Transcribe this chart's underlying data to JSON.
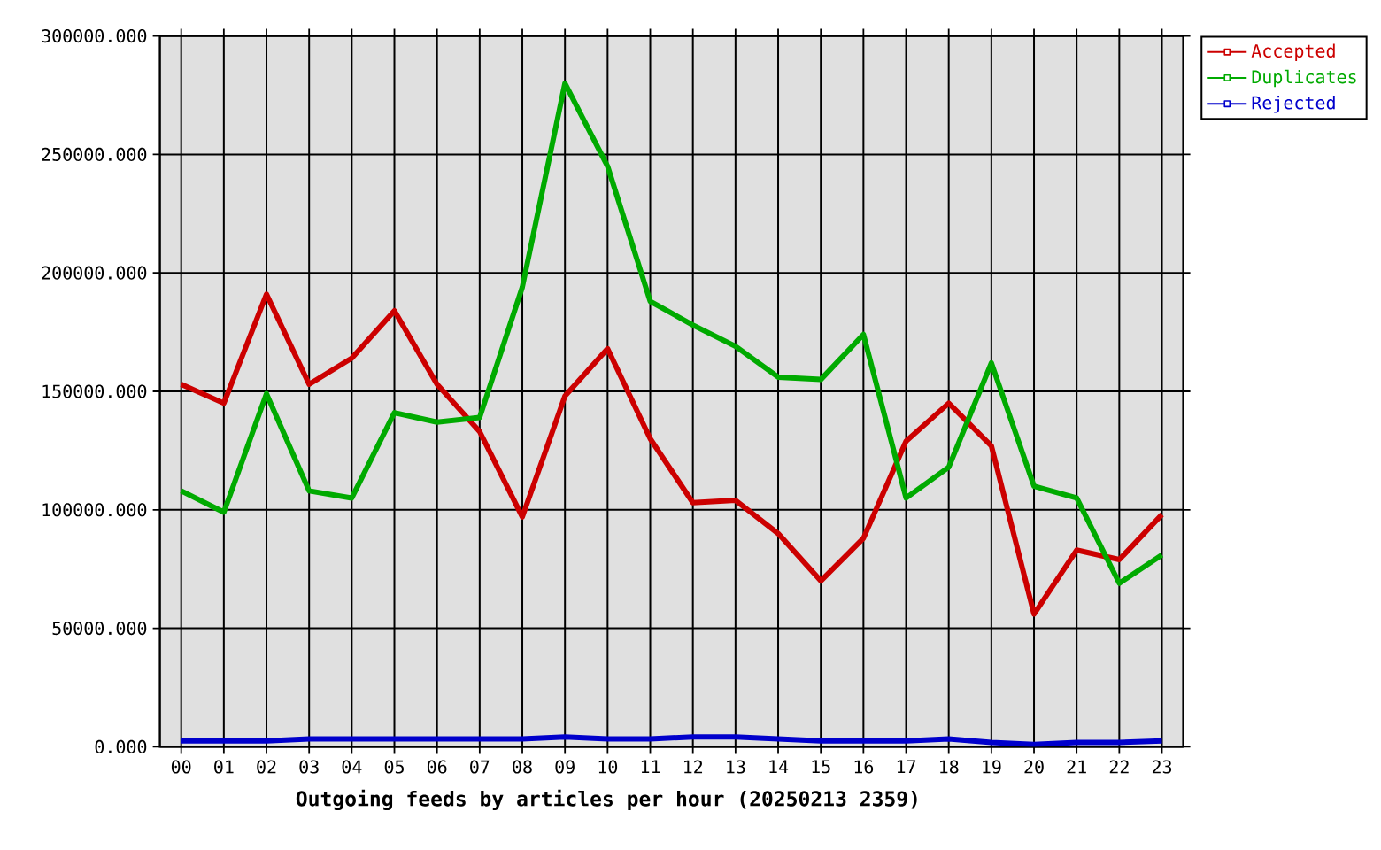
{
  "chart_data": {
    "type": "line",
    "xlabel": "Outgoing feeds by articles per hour (20250213 2359)",
    "categories": [
      "00",
      "01",
      "02",
      "03",
      "04",
      "05",
      "06",
      "07",
      "08",
      "09",
      "10",
      "11",
      "12",
      "13",
      "14",
      "15",
      "16",
      "17",
      "18",
      "19",
      "20",
      "21",
      "22",
      "23"
    ],
    "ylim": [
      0,
      300000
    ],
    "yticks": [
      {
        "value": 0,
        "label": "0.000"
      },
      {
        "value": 50000,
        "label": "50000.000"
      },
      {
        "value": 100000,
        "label": "100000.000"
      },
      {
        "value": 150000,
        "label": "150000.000"
      },
      {
        "value": 200000,
        "label": "200000.000"
      },
      {
        "value": 250000,
        "label": "250000.000"
      },
      {
        "value": 300000,
        "label": "300000.000"
      }
    ],
    "series": [
      {
        "name": "Accepted",
        "color": "#cc0000",
        "values": [
          153000,
          145000,
          191000,
          153000,
          164000,
          184000,
          153000,
          133000,
          97000,
          148000,
          168000,
          130000,
          103000,
          104000,
          90000,
          70000,
          88000,
          129000,
          145000,
          127000,
          56000,
          83000,
          79000,
          98000
        ]
      },
      {
        "name": "Duplicates",
        "color": "#00aa00",
        "values": [
          108000,
          99000,
          149000,
          108000,
          105000,
          141000,
          137000,
          139000,
          194000,
          280000,
          245000,
          188000,
          178000,
          169000,
          156000,
          155000,
          174000,
          105000,
          118000,
          162000,
          110000,
          105000,
          69000,
          81000
        ]
      },
      {
        "name": "Rejected",
        "color": "#0000cc",
        "values": [
          2500,
          2500,
          2500,
          3300,
          3300,
          3300,
          3300,
          3300,
          3300,
          4200,
          3300,
          3300,
          4200,
          4200,
          3300,
          2500,
          2500,
          2500,
          3300,
          1800,
          1000,
          1800,
          1800,
          2500
        ]
      }
    ],
    "grid": true,
    "legend": "top right",
    "marker": "none",
    "line_style": "solid"
  }
}
